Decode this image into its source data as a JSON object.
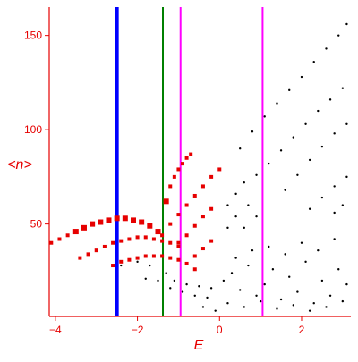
{
  "chart_data": {
    "type": "scatter",
    "title": "",
    "xlabel": "E",
    "ylabel": "<n>",
    "xlim": [
      -4.15,
      3.2
    ],
    "ylim": [
      1,
      165
    ],
    "x_ticks": [
      -4,
      -2,
      0,
      2
    ],
    "y_ticks": [
      50,
      100,
      150
    ],
    "grid": false,
    "axis_color": "#e60000",
    "vertical_lines": [
      {
        "x": -2.5,
        "color": "#0000ff",
        "emphasis": "thick"
      },
      {
        "x": -1.38,
        "color": "#008000",
        "emphasis": "normal"
      },
      {
        "x": -0.95,
        "color": "#ff00ff",
        "emphasis": "normal"
      },
      {
        "x": 1.05,
        "color": "#ff00ff",
        "emphasis": "normal"
      }
    ],
    "series": [
      {
        "color": "#000000",
        "marker": "dot",
        "points": [
          [
            0.5,
            90
          ],
          [
            0.8,
            99
          ],
          [
            1.1,
            107
          ],
          [
            1.4,
            114
          ],
          [
            1.7,
            121
          ],
          [
            2.0,
            128
          ],
          [
            2.3,
            136
          ],
          [
            2.6,
            143
          ],
          [
            2.9,
            150
          ],
          [
            3.1,
            156
          ],
          [
            1.2,
            82
          ],
          [
            1.5,
            89
          ],
          [
            1.8,
            96
          ],
          [
            2.1,
            103
          ],
          [
            2.4,
            110
          ],
          [
            2.7,
            116
          ],
          [
            3.0,
            122
          ],
          [
            1.6,
            68
          ],
          [
            1.9,
            76
          ],
          [
            2.2,
            84
          ],
          [
            2.5,
            91
          ],
          [
            2.8,
            98
          ],
          [
            3.1,
            103
          ],
          [
            2.2,
            58
          ],
          [
            2.5,
            64
          ],
          [
            2.8,
            70
          ],
          [
            3.1,
            75
          ],
          [
            2.8,
            56
          ],
          [
            3.0,
            60
          ],
          [
            0.2,
            60
          ],
          [
            0.4,
            66
          ],
          [
            0.6,
            72
          ],
          [
            0.9,
            76
          ],
          [
            0.7,
            60
          ],
          [
            0.9,
            54
          ],
          [
            0.6,
            48
          ],
          [
            0.4,
            54
          ],
          [
            0.2,
            48
          ],
          [
            -2.4,
            28
          ],
          [
            -2.0,
            30
          ],
          [
            -1.7,
            28
          ],
          [
            -1.3,
            24
          ],
          [
            -1.1,
            20
          ],
          [
            -0.8,
            18
          ],
          [
            -0.5,
            17
          ],
          [
            -0.2,
            16
          ],
          [
            -1.8,
            21
          ],
          [
            -1.5,
            20
          ],
          [
            -1.2,
            16
          ],
          [
            -0.9,
            14
          ],
          [
            -0.6,
            12
          ],
          [
            -0.3,
            11
          ],
          [
            0.1,
            20
          ],
          [
            0.3,
            24
          ],
          [
            0.5,
            15
          ],
          [
            0.7,
            28
          ],
          [
            0.9,
            12
          ],
          [
            1.1,
            18
          ],
          [
            1.3,
            26
          ],
          [
            1.5,
            10
          ],
          [
            1.7,
            22
          ],
          [
            1.9,
            14
          ],
          [
            2.1,
            30
          ],
          [
            2.3,
            8
          ],
          [
            2.5,
            20
          ],
          [
            2.7,
            12
          ],
          [
            2.9,
            26
          ],
          [
            3.1,
            18
          ],
          [
            0.2,
            8
          ],
          [
            0.6,
            6
          ],
          [
            1.0,
            9
          ],
          [
            1.4,
            5
          ],
          [
            1.8,
            7
          ],
          [
            2.2,
            4
          ],
          [
            2.6,
            6
          ],
          [
            3.0,
            9
          ],
          [
            -0.4,
            6
          ],
          [
            -0.1,
            4
          ],
          [
            0.4,
            32
          ],
          [
            0.8,
            36
          ],
          [
            1.2,
            38
          ],
          [
            1.6,
            34
          ],
          [
            2.0,
            40
          ],
          [
            2.4,
            36
          ],
          [
            2.8,
            42
          ]
        ]
      },
      {
        "color": "#e60000",
        "marker": "square",
        "points": [
          [
            -4.1,
            40
          ],
          [
            -3.9,
            42
          ],
          [
            -3.7,
            44
          ],
          [
            -3.5,
            46
          ],
          [
            -3.3,
            48
          ],
          [
            -3.1,
            50
          ],
          [
            -2.9,
            51
          ],
          [
            -2.7,
            52
          ],
          [
            -2.5,
            53
          ],
          [
            -2.3,
            53
          ],
          [
            -2.1,
            52
          ],
          [
            -1.9,
            51
          ],
          [
            -1.7,
            49
          ],
          [
            -1.5,
            46
          ],
          [
            -1.4,
            44
          ],
          [
            -3.4,
            32
          ],
          [
            -3.2,
            34
          ],
          [
            -3.0,
            36
          ],
          [
            -2.8,
            38
          ],
          [
            -2.6,
            40
          ],
          [
            -2.4,
            41
          ],
          [
            -2.2,
            42
          ],
          [
            -2.0,
            43
          ],
          [
            -1.8,
            43
          ],
          [
            -1.6,
            42
          ],
          [
            -1.4,
            41
          ],
          [
            -1.2,
            40
          ],
          [
            -1.0,
            38
          ],
          [
            -2.6,
            28
          ],
          [
            -2.4,
            30
          ],
          [
            -2.2,
            31
          ],
          [
            -2.0,
            32
          ],
          [
            -1.8,
            33
          ],
          [
            -1.6,
            33
          ],
          [
            -1.4,
            33
          ],
          [
            -1.2,
            32
          ],
          [
            -1.0,
            31
          ],
          [
            -0.8,
            29
          ],
          [
            -0.6,
            26
          ],
          [
            -1.3,
            62
          ],
          [
            -1.2,
            70
          ],
          [
            -1.1,
            75
          ],
          [
            -1.0,
            79
          ],
          [
            -0.9,
            82
          ],
          [
            -0.8,
            85
          ],
          [
            -0.7,
            87
          ],
          [
            -1.2,
            50
          ],
          [
            -1.0,
            55
          ],
          [
            -0.8,
            60
          ],
          [
            -0.6,
            65
          ],
          [
            -0.4,
            70
          ],
          [
            -0.2,
            75
          ],
          [
            0.0,
            79
          ],
          [
            -1.0,
            40
          ],
          [
            -0.8,
            44
          ],
          [
            -0.6,
            49
          ],
          [
            -0.4,
            54
          ],
          [
            -0.2,
            58
          ],
          [
            -0.6,
            33
          ],
          [
            -0.4,
            37
          ],
          [
            -0.2,
            41
          ]
        ]
      }
    ]
  }
}
